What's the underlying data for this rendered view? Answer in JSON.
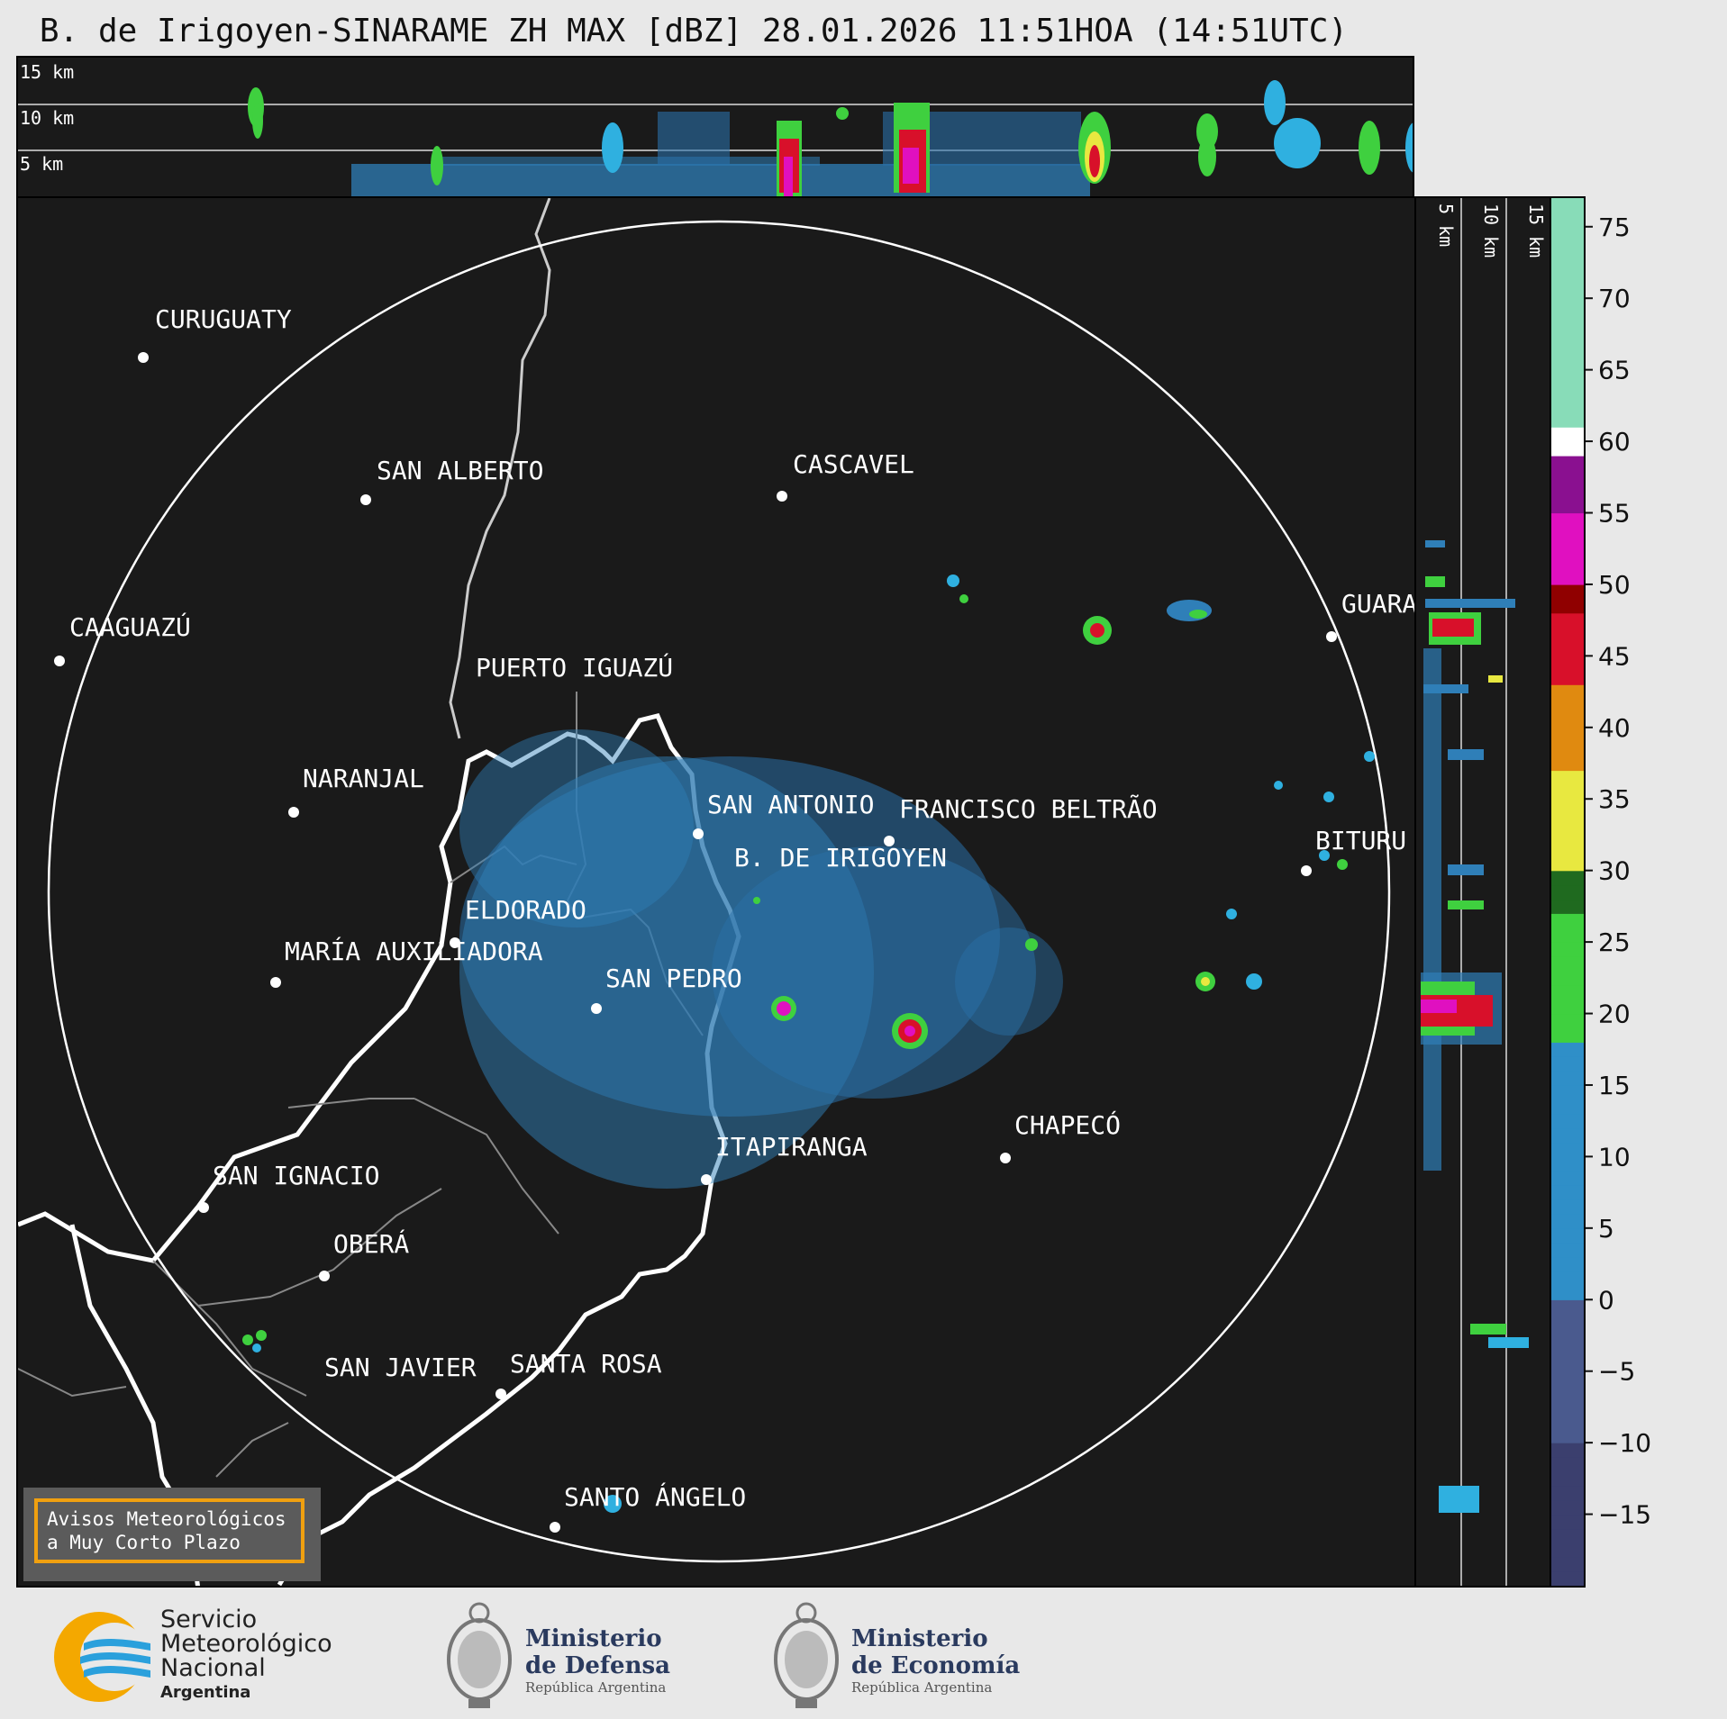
{
  "title": "B. de Irigoyen-SINARAME ZH MAX [dBZ] 28.01.2026 11:51HOA (14:51UTC)",
  "height_labels": [
    "15 km",
    "10 km",
    "5 km"
  ],
  "cities": [
    {
      "name": "CURUGUATY"
    },
    {
      "name": "SAN ALBERTO"
    },
    {
      "name": "CASCAVEL"
    },
    {
      "name": "CAAGUAZÚ"
    },
    {
      "name": "GUARA"
    },
    {
      "name": "PUERTO IGUAZÚ"
    },
    {
      "name": "NARANJAL"
    },
    {
      "name": "SAN ANTONIO"
    },
    {
      "name": "FRANCISCO BELTRÃO"
    },
    {
      "name": "BITURU"
    },
    {
      "name": "B. DE IRIGOYEN"
    },
    {
      "name": "ELDORADO"
    },
    {
      "name": "MARÍA AUXILIADORA"
    },
    {
      "name": "SAN PEDRO"
    },
    {
      "name": "CHAPECÓ"
    },
    {
      "name": "ITAPIRANGA"
    },
    {
      "name": "SAN IGNACIO"
    },
    {
      "name": "OBERÁ"
    },
    {
      "name": "SAN JAVIER"
    },
    {
      "name": "SANTA ROSA"
    },
    {
      "name": "SANTO ÁNGELO"
    }
  ],
  "colorbar": {
    "unit": "dBZ",
    "ticks": [
      "75",
      "70",
      "65",
      "60",
      "55",
      "50",
      "45",
      "40",
      "35",
      "30",
      "25",
      "20",
      "15",
      "10",
      "5",
      "0",
      "−5",
      "−10",
      "−15"
    ],
    "range": [
      -20,
      77
    ],
    "colors": {
      "low": "#3b3f6e",
      "blue": "#2f8fc8",
      "green": "#3fd03f",
      "darkgreen": "#1f6a1f",
      "yellow": "#e8e840",
      "orange": "#e08a10",
      "red": "#d8102a",
      "darkred": "#900000",
      "magenta": "#e010c0",
      "purple": "#8a1090",
      "white": "#ffffff",
      "mint": "#88dcb8"
    }
  },
  "aviso": {
    "line1": "Avisos Meteorológicos",
    "line2": "a Muy Corto Plazo"
  },
  "logos": {
    "smn": {
      "line1": "Servicio",
      "line2": "Meteorológico",
      "line3": "Nacional",
      "line4": "Argentina"
    },
    "defensa": {
      "line1": "Ministerio",
      "line2": "de Defensa",
      "line3": "República Argentina"
    },
    "economia": {
      "line1": "Ministerio",
      "line2": "de Economía",
      "line3": "República Argentina"
    }
  }
}
